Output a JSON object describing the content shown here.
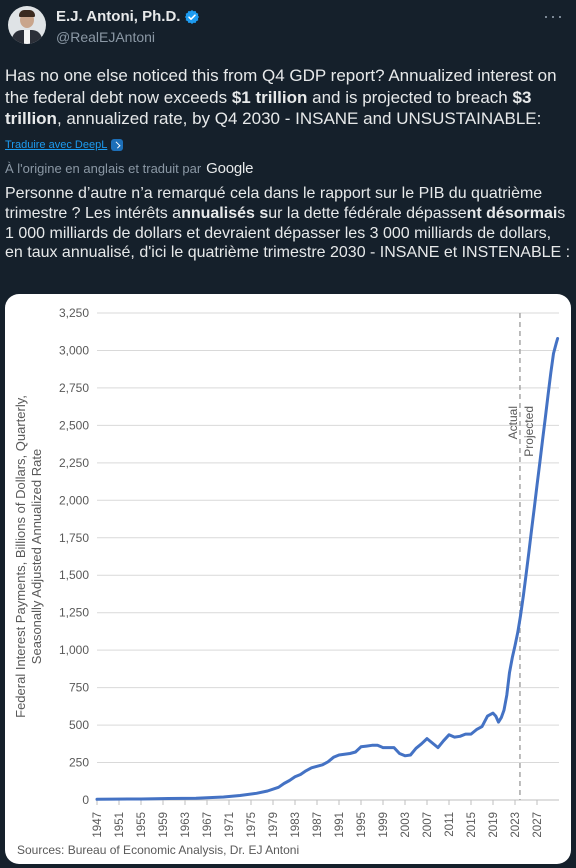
{
  "author": {
    "name": "E.J. Antoni, Ph.D.",
    "handle": "@RealEJAntoni"
  },
  "menu_icon": "more-icon",
  "tweet": {
    "parts": [
      {
        "t": "Has no one else noticed this from Q4 GDP report? Annualized interest on the federal debt now exceeds ",
        "b": false
      },
      {
        "t": "$1 trillion",
        "b": true
      },
      {
        "t": " and is projected to breach ",
        "b": false
      },
      {
        "t": "$3 trillion",
        "b": true
      },
      {
        "t": ", annualized rate, by Q4 2030 - INSANE and UNSUSTAINABLE:",
        "b": false
      }
    ]
  },
  "translation": {
    "link_label": "Traduire avec DeepL",
    "origin_label": "À l'origine en anglais et traduit par",
    "provider": "Google",
    "parts": [
      {
        "t": "Personne d’autre n’a remarqué cela dans le rapport sur le PIB du quatrième trimestre ? Les intérêts a",
        "b": false
      },
      {
        "t": "nnualisés s",
        "b": true
      },
      {
        "t": "ur la dette fédérale dépasse",
        "b": false
      },
      {
        "t": "nt désormai",
        "b": true
      },
      {
        "t": "s 1 000 milliards de dollars et devraient dépasser les 3 000 milliards de dollars, en taux annualisé, d'ici le quatrième trimestre 2030 - INSANE et INSTENABLE :",
        "b": false
      }
    ]
  },
  "chart_data": {
    "type": "line",
    "ylabel": "Federal Interest Payments, Billions of Dollars, Quarterly, Seasonally Adjusted Annualized Rate",
    "xlabel": "",
    "ylim": [
      0,
      3250
    ],
    "yticks": [
      0,
      250,
      500,
      750,
      1000,
      1250,
      1500,
      1750,
      2000,
      2250,
      2500,
      2750,
      3000,
      3250
    ],
    "ytick_labels": [
      "0",
      "250",
      "500",
      "750",
      "1,000",
      "1,250",
      "1,500",
      "1,750",
      "2,000",
      "2,250",
      "2,500",
      "2,750",
      "3,000",
      "3,250"
    ],
    "xlim": [
      1947,
      2031
    ],
    "xticks": [
      1947,
      1951,
      1955,
      1959,
      1963,
      1967,
      1971,
      1975,
      1979,
      1983,
      1987,
      1991,
      1995,
      1999,
      2003,
      2007,
      2011,
      2015,
      2019,
      2023,
      2027
    ],
    "annotation_x": 2023.9,
    "annotation_labels": [
      "Actual",
      "Projected"
    ],
    "grid": true,
    "source": "Sources: Bureau of Economic Analysis, Dr. EJ Antoni",
    "series": [
      {
        "color": "#4472c4",
        "x": [
          1947,
          1950,
          1955,
          1960,
          1965,
          1970,
          1973,
          1976,
          1978,
          1980,
          1981,
          1982,
          1983,
          1984,
          1985,
          1986,
          1987,
          1988,
          1989,
          1990,
          1991,
          1992,
          1993,
          1994,
          1995,
          1996,
          1997,
          1998,
          1999,
          2000,
          2001,
          2002,
          2003,
          2004,
          2005,
          2006,
          2007,
          2008,
          2009,
          2010,
          2011,
          2012,
          2013,
          2014,
          2015,
          2016,
          2017,
          2018,
          2019,
          2019.5,
          2020,
          2020.5,
          2021,
          2021.5,
          2022,
          2022.5,
          2023,
          2023.5,
          2024,
          2024.5,
          2025,
          2025.5,
          2026,
          2026.5,
          2027,
          2027.5,
          2028,
          2028.5,
          2029,
          2029.5,
          2030,
          2030.5,
          2030.75
        ],
        "y": [
          5,
          6,
          7,
          10,
          12,
          20,
          30,
          45,
          60,
          85,
          110,
          130,
          155,
          170,
          195,
          215,
          225,
          235,
          255,
          285,
          300,
          305,
          310,
          320,
          355,
          360,
          365,
          365,
          350,
          350,
          350,
          310,
          295,
          300,
          345,
          375,
          410,
          380,
          350,
          395,
          435,
          420,
          425,
          440,
          440,
          470,
          490,
          560,
          580,
          560,
          520,
          550,
          600,
          700,
          850,
          950,
          1030,
          1120,
          1230,
          1360,
          1500,
          1650,
          1800,
          1950,
          2100,
          2250,
          2400,
          2550,
          2700,
          2850,
          2980,
          3050,
          3080
        ]
      }
    ]
  }
}
